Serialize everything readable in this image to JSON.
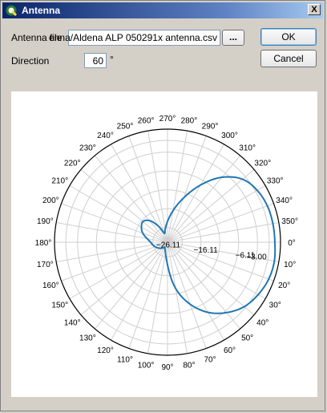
{
  "window": {
    "title": "Antenna",
    "app_icon": "qgis-icon",
    "close_label": "X"
  },
  "form": {
    "antenna_file_label": "Antenna file",
    "antenna_file_value": "enna/Aldena ALP 050291x antenna.csv",
    "browse_label": "...",
    "direction_label": "Direction",
    "direction_value": "60",
    "direction_unit": "°"
  },
  "buttons": {
    "ok_label": "OK",
    "cancel_label": "Cancel"
  },
  "chart_data": {
    "type": "polar-line",
    "theta_zero_label": "0°",
    "theta_ticks_deg": [
      0,
      10,
      20,
      30,
      40,
      50,
      60,
      70,
      80,
      90,
      100,
      110,
      120,
      130,
      140,
      150,
      160,
      170,
      180,
      190,
      200,
      210,
      220,
      230,
      240,
      250,
      260,
      270,
      280,
      290,
      300,
      310,
      320,
      330,
      340,
      350
    ],
    "theta_tick_labels": [
      "0°",
      "10°",
      "20°",
      "30°",
      "40°",
      "50°",
      "60°",
      "70°",
      "80°",
      "90°",
      "100°",
      "110°",
      "120°",
      "130°",
      "140°",
      "150°",
      "160°",
      "170°",
      "180°",
      "190°",
      "200°",
      "210°",
      "220°",
      "230°",
      "240°",
      "250°",
      "260°",
      "270°",
      "280°",
      "290°",
      "300°",
      "310°",
      "320°",
      "330°",
      "340°",
      "350°"
    ],
    "r_range_db": [
      -30,
      0
    ],
    "r_ticks_db": [
      -3.0,
      -6.11,
      -16.11,
      -26.11
    ],
    "r_tick_labels": [
      "−3.00",
      "−6.11",
      "−16.11",
      "−26.11"
    ],
    "grid": true,
    "series_color": "#1f77b4",
    "pattern": {
      "theta_deg": [
        0,
        10,
        20,
        30,
        40,
        50,
        60,
        70,
        80,
        90,
        100,
        110,
        120,
        130,
        140,
        150,
        160,
        170,
        180,
        190,
        200,
        210,
        220,
        230,
        240,
        250,
        260,
        270,
        280,
        290,
        300,
        310,
        320,
        330,
        340,
        350
      ],
      "gain_db": [
        -1.5,
        -1.2,
        -1.4,
        -2.2,
        -3.4,
        -5.6,
        -8.5,
        -12.5,
        -17.5,
        -24,
        -27,
        -28,
        -28.5,
        -28,
        -27.5,
        -27,
        -26.5,
        -26,
        -25.5,
        -24.5,
        -23,
        -22,
        -21.5,
        -22.5,
        -25,
        -27.5,
        -26.5,
        -24.5,
        -21.5,
        -17.5,
        -12.5,
        -7.5,
        -4,
        -2.5,
        -1.8,
        -1.6
      ]
    }
  }
}
